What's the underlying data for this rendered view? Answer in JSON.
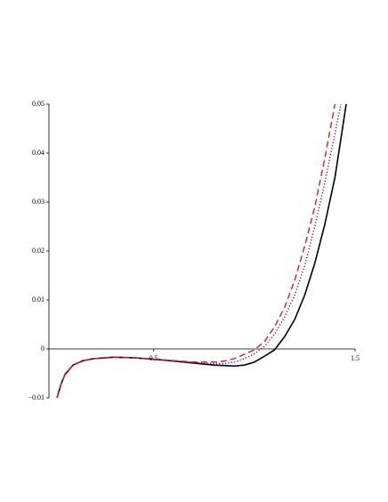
{
  "chart_data": {
    "type": "line",
    "xlim": [
      -0.02,
      1.5
    ],
    "ylim": [
      -0.01,
      0.05
    ],
    "xticks": [
      0.5,
      1.5
    ],
    "yticks": [
      {
        "value": -0.01,
        "label": "−0.01"
      },
      0,
      0.01,
      0.02,
      0.03,
      0.04,
      0.05
    ],
    "grid": false,
    "series": [
      {
        "color": "#000000",
        "style": "solid",
        "x": [
          0.02,
          0.04,
          0.06,
          0.1,
          0.15,
          0.2,
          0.3,
          0.4,
          0.5,
          0.6,
          0.7,
          0.8,
          0.9,
          0.95,
          1.0,
          1.05,
          1.1,
          1.15,
          1.2,
          1.25,
          1.3,
          1.35,
          1.4,
          1.456
        ],
        "values": [
          -0.01,
          -0.0072,
          -0.0052,
          -0.0033,
          -0.0024,
          -0.002,
          -0.0017,
          -0.0018,
          -0.0021,
          -0.0025,
          -0.0029,
          -0.0033,
          -0.0035,
          -0.0033,
          -0.0027,
          -0.0015,
          -0.0002,
          0.0025,
          0.006,
          0.011,
          0.0175,
          0.0255,
          0.035,
          0.05
        ]
      },
      {
        "color": "#1f1fb4",
        "style": "dotted",
        "x": [
          0.02,
          0.04,
          0.06,
          0.1,
          0.15,
          0.2,
          0.3,
          0.4,
          0.5,
          0.6,
          0.7,
          0.8,
          0.85,
          0.9,
          0.95,
          1.0,
          1.05,
          1.1,
          1.15,
          1.2,
          1.25,
          1.3,
          1.35,
          1.43
        ],
        "values": [
          -0.01,
          -0.0072,
          -0.0052,
          -0.0033,
          -0.0024,
          -0.002,
          -0.0017,
          -0.0018,
          -0.0021,
          -0.0024,
          -0.0028,
          -0.003,
          -0.003,
          -0.0027,
          -0.002,
          -0.001,
          0.0005,
          0.003,
          0.0065,
          0.011,
          0.017,
          0.025,
          0.034,
          0.05
        ]
      },
      {
        "color": "#e8141e",
        "style": "dashed",
        "x": [
          0.02,
          0.04,
          0.06,
          0.1,
          0.15,
          0.2,
          0.3,
          0.4,
          0.5,
          0.6,
          0.7,
          0.8,
          0.85,
          0.9,
          0.95,
          1.0,
          1.05,
          1.1,
          1.15,
          1.2,
          1.25,
          1.3,
          1.35,
          1.4
        ],
        "values": [
          -0.01,
          -0.0072,
          -0.0052,
          -0.0033,
          -0.0024,
          -0.002,
          -0.0017,
          -0.0018,
          -0.0021,
          -0.0024,
          -0.0027,
          -0.0027,
          -0.0025,
          -0.002,
          -0.0011,
          -0.0002,
          0.0015,
          0.0045,
          0.0085,
          0.014,
          0.021,
          0.029,
          0.039,
          0.05
        ]
      }
    ]
  }
}
